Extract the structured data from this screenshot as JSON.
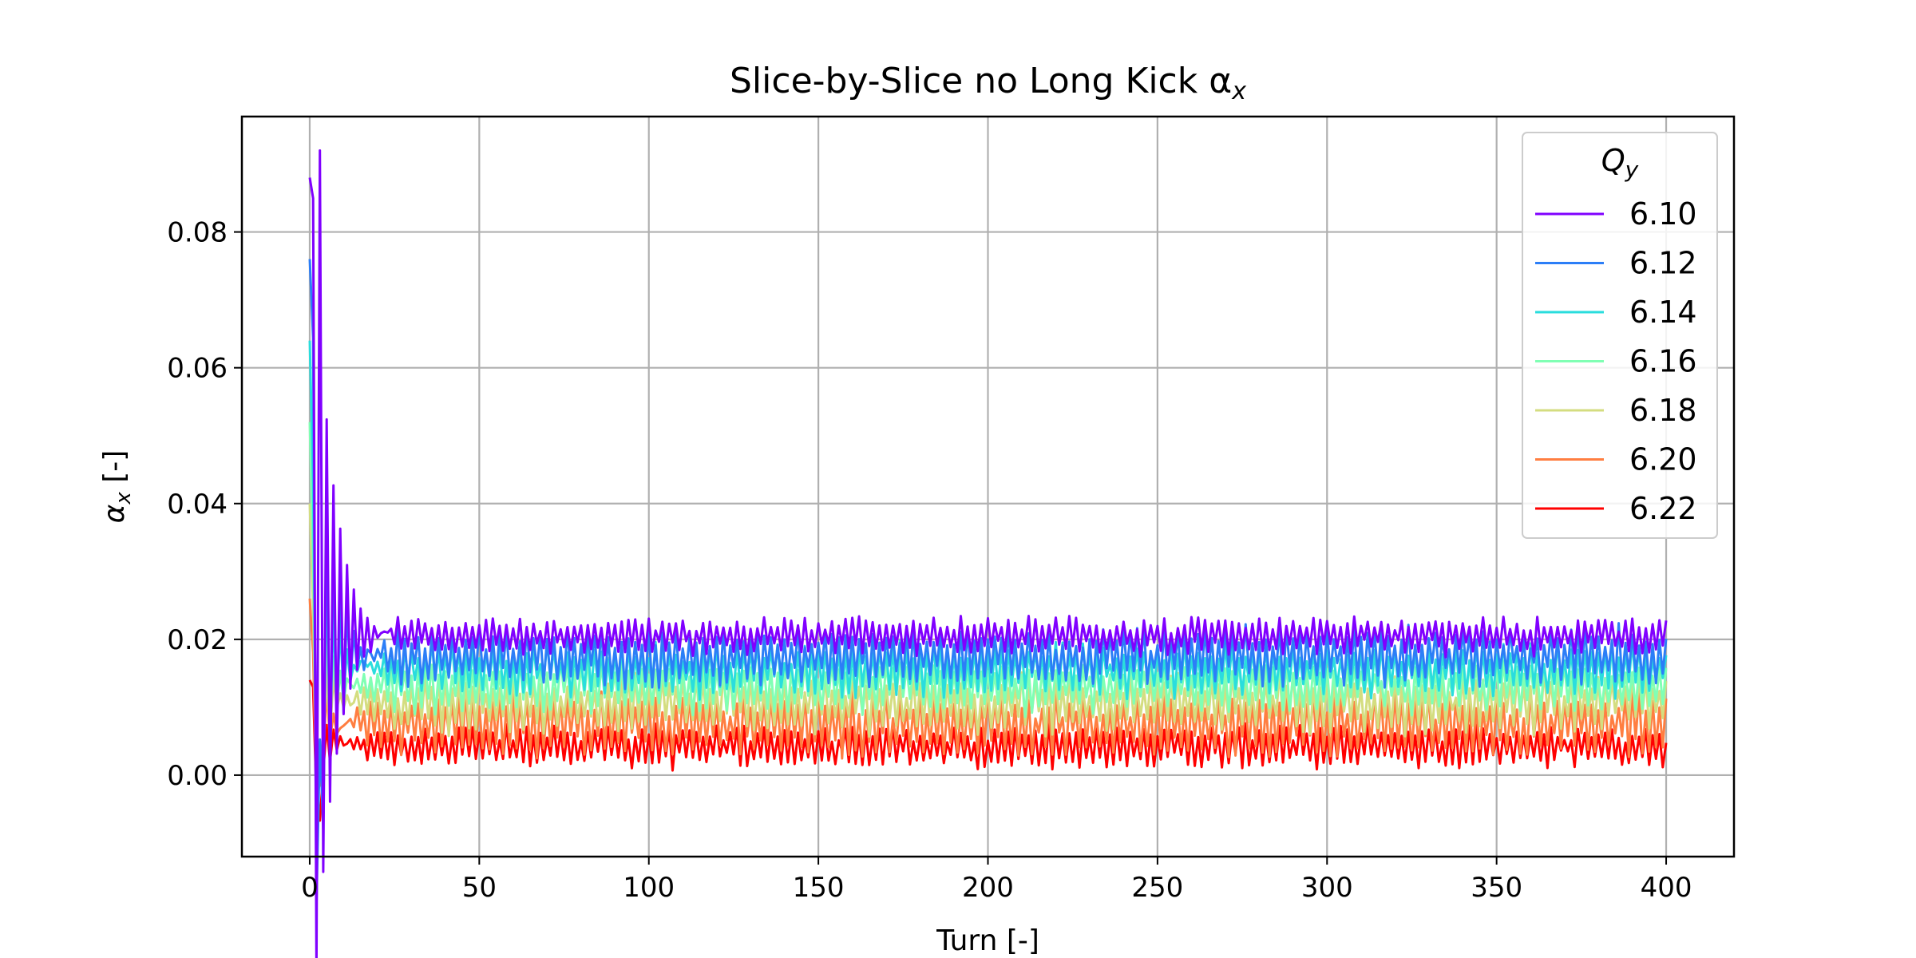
{
  "chart_data": {
    "type": "line",
    "title": "Slice-by-Slice no Long Kick α",
    "title_subscript": "x",
    "xlabel": "Turn [-]",
    "ylabel": "α",
    "ylabel_subscript": "x",
    "ylabel_suffix": " [-]",
    "xlim": [
      -20,
      420
    ],
    "ylim": [
      -0.012,
      0.097
    ],
    "xticks": [
      0,
      50,
      100,
      150,
      200,
      250,
      300,
      350,
      400
    ],
    "yticks": [
      0.0,
      0.02,
      0.04,
      0.06,
      0.08
    ],
    "ytick_labels": [
      "0.00",
      "0.02",
      "0.04",
      "0.06",
      "0.08"
    ],
    "grid": true,
    "legend_position": "top-right",
    "legend_title": "Q",
    "legend_title_subscript": "y",
    "x_range": [
      0,
      400
    ],
    "series": [
      {
        "name": "6.10",
        "color": "#8000ff",
        "baseline": 0.0205,
        "oscillation": 0.0018,
        "start": 0.088,
        "peak": 0.092,
        "min": 0.012
      },
      {
        "name": "6.12",
        "color": "#2c7ef7",
        "baseline": 0.0175,
        "oscillation": 0.0028,
        "start": 0.076,
        "peak": 0.072,
        "min": 0.004
      },
      {
        "name": "6.14",
        "color": "#2adddd",
        "baseline": 0.0155,
        "oscillation": 0.0025,
        "start": 0.064,
        "peak": 0.048,
        "min": 0.002
      },
      {
        "name": "6.16",
        "color": "#80ffb4",
        "baseline": 0.013,
        "oscillation": 0.0025,
        "start": 0.052,
        "peak": 0.036,
        "min": 0.0
      },
      {
        "name": "6.18",
        "color": "#d4dd80",
        "baseline": 0.0105,
        "oscillation": 0.0028,
        "start": 0.04,
        "peak": 0.028,
        "min": -0.002
      },
      {
        "name": "6.20",
        "color": "#ff7e41",
        "baseline": 0.0075,
        "oscillation": 0.003,
        "start": 0.026,
        "peak": 0.022,
        "min": -0.004
      },
      {
        "name": "6.22",
        "color": "#ff0000",
        "baseline": 0.0042,
        "oscillation": 0.002,
        "start": 0.014,
        "peak": 0.016,
        "min": -0.0075
      }
    ]
  }
}
